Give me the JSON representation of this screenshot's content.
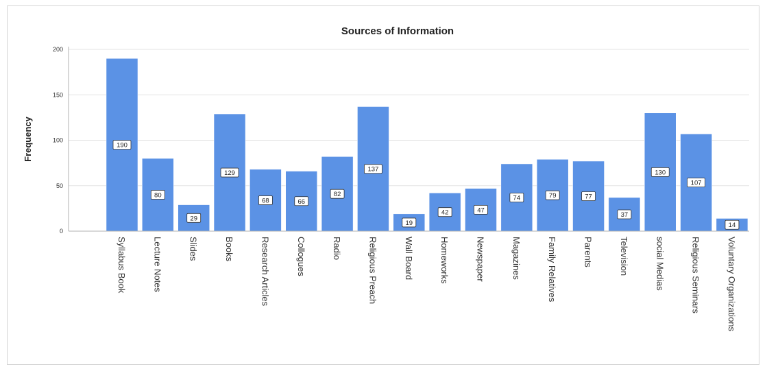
{
  "chart_data": {
    "type": "bar",
    "title": "Sources of Information",
    "xlabel": "",
    "ylabel": "Frequency",
    "ylim": [
      0,
      200
    ],
    "yticks": [
      0,
      50,
      100,
      150,
      200
    ],
    "grid": true,
    "categories": [
      "Syllabus Book",
      "Lecture Notes",
      "Slides",
      "Books",
      "Research Articles",
      "Collogues",
      "Radio",
      "Religious Preach",
      "Wall Board",
      "Homeworks",
      "Newspaper",
      "Magazines",
      "Family Relatives",
      "Parents",
      "Television",
      "social Medias",
      "Religious Seminars",
      "Voluntary Organizations"
    ],
    "values": [
      190,
      80,
      29,
      129,
      68,
      66,
      82,
      137,
      19,
      42,
      47,
      74,
      79,
      77,
      37,
      130,
      107,
      14
    ],
    "data_labels": [
      "190",
      "80",
      "29",
      "129",
      "68",
      "66",
      "82",
      "137",
      "19",
      "42",
      "47",
      "74",
      "79",
      "77",
      "37",
      "130",
      "107",
      "14"
    ],
    "bar_color": "#5b92e5"
  }
}
